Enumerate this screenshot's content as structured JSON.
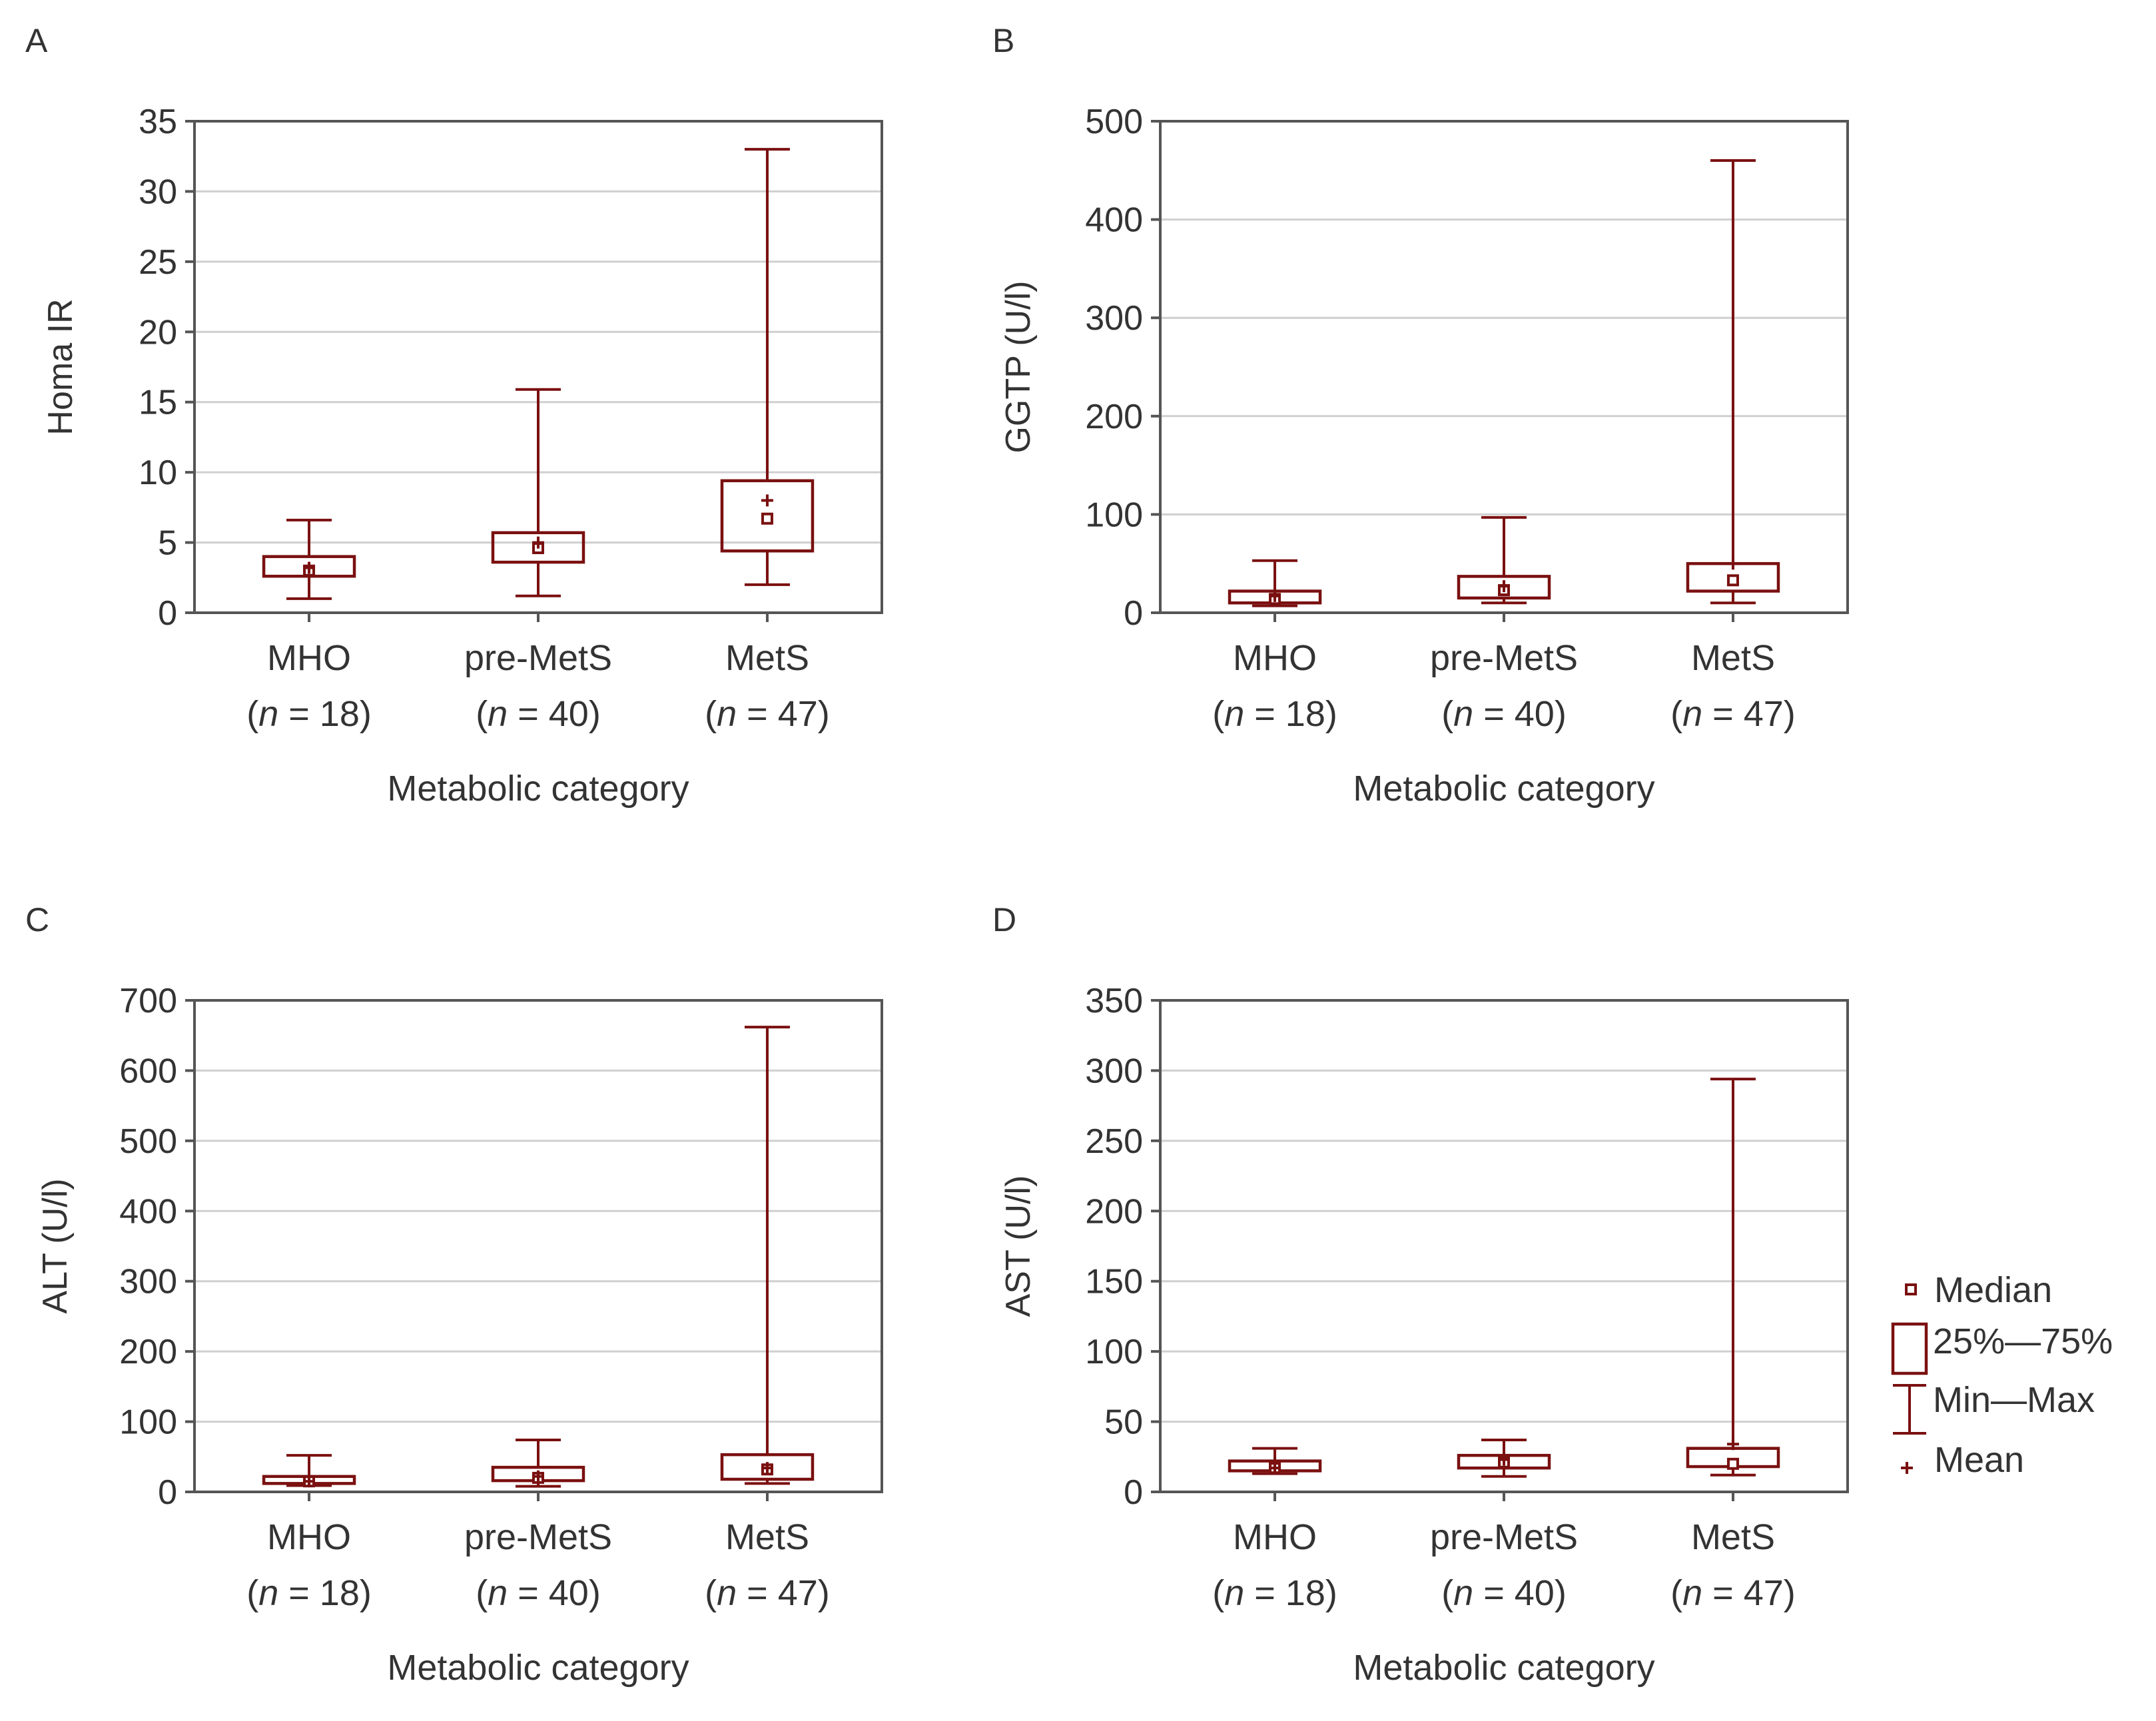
{
  "colors": {
    "series": "#7a1010",
    "grid": "#cfcfcf",
    "axis": "#555555",
    "text": "#333333"
  },
  "legend": {
    "median_label": "Median",
    "iqr_label": "25%—75%",
    "range_label": "Min—Max",
    "mean_label": "Mean"
  },
  "chart_data": [
    {
      "panel": "A",
      "type": "boxplot",
      "ylabel": "Homa IR",
      "xlabel": "Metabolic category",
      "ylim": [
        0,
        35
      ],
      "yticks": [
        0,
        5,
        10,
        15,
        20,
        25,
        30,
        35
      ],
      "ytick_labels": [
        "0",
        "5",
        "10",
        "15",
        "20",
        "25",
        "30",
        "35"
      ],
      "categories": [
        "MHO",
        "pre-MetS",
        "MetS"
      ],
      "n_labels": [
        "18",
        "40",
        "47"
      ],
      "min": [
        1.0,
        1.2,
        2.0
      ],
      "q1": [
        2.6,
        3.6,
        4.4
      ],
      "median": [
        3.0,
        4.6,
        6.7
      ],
      "q3": [
        4.0,
        5.7,
        9.4
      ],
      "max": [
        6.6,
        15.9,
        33.0
      ],
      "mean": [
        3.2,
        5.0,
        8.0
      ]
    },
    {
      "panel": "B",
      "type": "boxplot",
      "ylabel": "GGTP (U/l)",
      "xlabel": "Metabolic category",
      "ylim": [
        0,
        500
      ],
      "yticks": [
        0,
        100,
        200,
        300,
        400,
        500
      ],
      "ytick_labels": [
        "0",
        "100",
        "200",
        "300",
        "400",
        "500"
      ],
      "categories": [
        "MHO",
        "pre-MetS",
        "MetS"
      ],
      "n_labels": [
        "18",
        "40",
        "47"
      ],
      "min": [
        7,
        10,
        10
      ],
      "q1": [
        10,
        15,
        22
      ],
      "median": [
        14,
        23,
        33
      ],
      "q3": [
        22,
        37,
        50
      ],
      "max": [
        53,
        97,
        460
      ],
      "mean": [
        17,
        27,
        50
      ]
    },
    {
      "panel": "C",
      "type": "boxplot",
      "ylabel": "ALT (U/l)",
      "xlabel": "Metabolic category",
      "ylim": [
        0,
        700
      ],
      "yticks": [
        0,
        100,
        200,
        300,
        400,
        500,
        600,
        700
      ],
      "ytick_labels": [
        "0",
        "100",
        "200",
        "300",
        "400",
        "500",
        "600",
        "700"
      ],
      "categories": [
        "MHO",
        "pre-MetS",
        "MetS"
      ],
      "n_labels": [
        "18",
        "40",
        "47"
      ],
      "min": [
        9,
        8,
        12
      ],
      "q1": [
        12,
        16,
        18
      ],
      "median": [
        15,
        20,
        32
      ],
      "q3": [
        22,
        35,
        53
      ],
      "max": [
        52,
        74,
        662
      ],
      "mean": [
        15,
        22,
        34
      ]
    },
    {
      "panel": "D",
      "type": "boxplot",
      "ylabel": "AST (U/l)",
      "xlabel": "Metabolic category",
      "ylim": [
        0,
        350
      ],
      "yticks": [
        0,
        50,
        100,
        150,
        200,
        250,
        300,
        350
      ],
      "ytick_labels": [
        "0",
        "50",
        "100",
        "150",
        "200",
        "250",
        "300",
        "350"
      ],
      "categories": [
        "MHO",
        "pre-MetS",
        "MetS"
      ],
      "n_labels": [
        "18",
        "40",
        "47"
      ],
      "min": [
        13,
        11,
        12
      ],
      "q1": [
        15,
        17,
        18
      ],
      "median": [
        17,
        21,
        20
      ],
      "q3": [
        22,
        26,
        31
      ],
      "max": [
        31,
        37,
        294
      ],
      "mean": [
        17,
        23,
        34
      ]
    }
  ]
}
